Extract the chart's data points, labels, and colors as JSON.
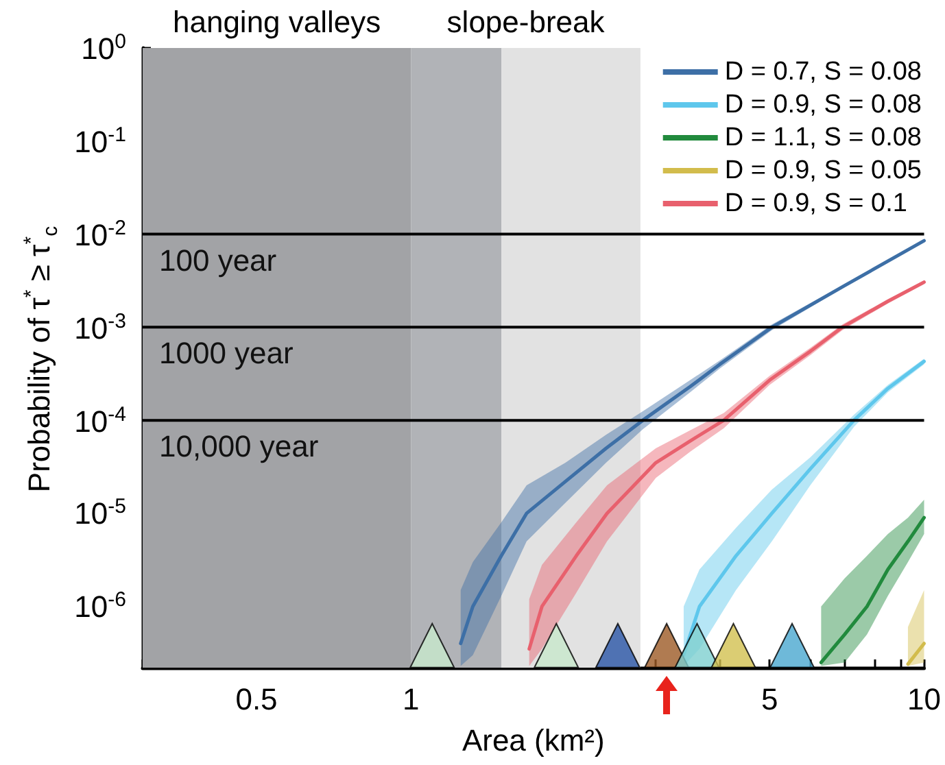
{
  "chart_data": {
    "type": "line",
    "xlabel": "Area (km²)",
    "ylabel": "Probability of  τ$^{*}$ ≥ τ$^{*}$$_{c}$",
    "log": "xy",
    "xlim": [
      0.3,
      10
    ],
    "ylim": [
      2.2e-07,
      1
    ],
    "xticks": [
      {
        "value": 0.3,
        "label": null
      },
      {
        "value": 0.4,
        "label": null
      },
      0.5,
      {
        "value": 0.6,
        "label": null
      },
      {
        "value": 0.7,
        "label": null
      },
      {
        "value": 0.8,
        "label": null
      },
      {
        "value": 0.9,
        "label": null
      },
      1,
      {
        "value": 2,
        "label": null
      },
      {
        "value": 3,
        "label": null
      },
      {
        "value": 4,
        "label": null
      },
      5,
      {
        "value": 6,
        "label": null
      },
      {
        "value": 7,
        "label": null
      },
      {
        "value": 8,
        "label": null
      },
      {
        "value": 9,
        "label": null
      },
      10
    ],
    "yticks": [
      {
        "value": 1e-06,
        "label": "10$^{-6}$"
      },
      {
        "value": 1e-05,
        "label": "10$^{-5}$"
      },
      {
        "value": 0.0001,
        "label": "10$^{-4}$"
      },
      {
        "value": 0.001,
        "label": "10$^{-3}$"
      },
      {
        "value": 0.01,
        "label": "10$^{-2}$"
      },
      {
        "value": 0.1,
        "label": "10$^{-1}$"
      },
      {
        "value": 1,
        "label": "10$^{0}$"
      }
    ],
    "grid": false,
    "legend": "top right",
    "marker": "none",
    "line_style": "solid",
    "bands": [
      {
        "axis": "x",
        "from": 0.3,
        "to": 1,
        "label": "hanging valleys",
        "color": "#a2a3a6"
      },
      {
        "axis": "x",
        "from": 1,
        "to": 2.8,
        "label": "slope-break",
        "color": "#e2e2e2"
      },
      {
        "axis": "x",
        "from": 1,
        "to": 1.5,
        "label": null,
        "color": "#b1b3b7"
      }
    ],
    "ref_lines": [
      {
        "axis": "y",
        "value": 0.01,
        "label": "100 year",
        "color": "#000000"
      },
      {
        "axis": "y",
        "value": 0.001,
        "label": "1000 year",
        "color": "#000000"
      },
      {
        "axis": "y",
        "value": 0.0001,
        "label": "10,000 year",
        "color": "#000000"
      }
    ],
    "series": [
      {
        "name": "D = 0.7, S = 0.08",
        "color": "#3d6fa6",
        "x": [
          1.25,
          1.32,
          1.5,
          1.68,
          2,
          2.4,
          2.83,
          3.5,
          4,
          5.05,
          7,
          10
        ],
        "values": [
          4e-07,
          1e-06,
          3.5e-06,
          1e-05,
          2.2e-05,
          5e-05,
          0.0001,
          0.00023,
          0.0004,
          0.001,
          0.0028,
          0.0085
        ],
        "lower": [
          2.3e-07,
          3e-07,
          1.3e-06,
          5e-06,
          1.3e-05,
          3.5e-05,
          8e-05,
          0.0002,
          0.00036,
          0.00093,
          0.0027,
          0.0082
        ],
        "upper": [
          1.5e-06,
          3e-06,
          8e-06,
          2e-05,
          3.5e-05,
          7e-05,
          0.000125,
          0.00027,
          0.00044,
          0.00107,
          0.0029,
          0.0088
        ]
      },
      {
        "name": "D = 0.9, S = 0.08",
        "color": "#5ec7ec",
        "x": [
          3.4,
          3.65,
          4.3,
          5.05,
          6,
          7.3,
          8.5,
          10
        ],
        "values": [
          3e-07,
          1e-06,
          3.5e-06,
          1e-05,
          3e-05,
          0.0001,
          0.00022,
          0.00043
        ],
        "lower": [
          2.3e-07,
          3.5e-07,
          1.5e-06,
          5e-06,
          2e-05,
          8.5e-05,
          0.0002,
          0.0004
        ],
        "upper": [
          1e-06,
          2.5e-06,
          7e-06,
          1.8e-05,
          4e-05,
          0.000115,
          0.00024,
          0.00046
        ]
      },
      {
        "name": "D = 1.1, S = 0.08",
        "color": "#218a3d",
        "x": [
          6.3,
          7,
          7.74,
          8.5,
          9.3,
          10
        ],
        "values": [
          2.5e-07,
          5e-07,
          1e-06,
          2.5e-06,
          5e-06,
          9e-06
        ],
        "lower": [
          2.3e-07,
          2.5e-07,
          5e-07,
          1.3e-06,
          3e-06,
          6e-06
        ],
        "upper": [
          1e-06,
          2e-06,
          3.5e-06,
          6e-06,
          9e-06,
          1.4e-05
        ]
      },
      {
        "name": "D = 0.9, S = 0.05",
        "color": "#d2bc4c",
        "x": [
          9.3,
          10
        ],
        "values": [
          2.4e-07,
          4e-07
        ],
        "lower": [
          2.3e-07,
          2.5e-07
        ],
        "upper": [
          6e-07,
          1.5e-06
        ]
      },
      {
        "name": "D = 0.9, S = 0.1",
        "color": "#e8606d",
        "x": [
          1.7,
          1.8,
          2.1,
          2.41,
          3,
          3.5,
          4.07,
          5,
          6,
          6.93,
          8.5,
          10
        ],
        "values": [
          3.5e-07,
          1e-06,
          3.5e-06,
          1e-05,
          3.5e-05,
          6e-05,
          0.0001,
          0.00027,
          0.00055,
          0.001,
          0.0019,
          0.00305
        ],
        "lower": [
          2.3e-07,
          3.5e-07,
          1.4e-06,
          5e-06,
          2.4e-05,
          4.6e-05,
          8.2e-05,
          0.00024,
          0.0005,
          0.00093,
          0.0018,
          0.0029
        ],
        "upper": [
          1.2e-06,
          2.8e-06,
          8e-06,
          2e-05,
          5e-05,
          7.8e-05,
          0.00012,
          0.0003,
          0.0006,
          0.00107,
          0.002,
          0.0032
        ]
      },
      {
        "type": "scatter",
        "marker": "triangle",
        "x": [
          1.1,
          1.92,
          2.53,
          3.15,
          3.61,
          4.25,
          5.53
        ],
        "values": [
          3.8e-07,
          3.8e-07,
          3.8e-07,
          3.8e-07,
          3.8e-07,
          3.8e-07,
          3.8e-07
        ],
        "colors": [
          "#c8e8cc",
          "#c8e8cc",
          "#2a56a8",
          "#9c5a25",
          "#7ecfcf",
          "#d2c050",
          "#4aa8d0"
        ]
      }
    ]
  }
}
